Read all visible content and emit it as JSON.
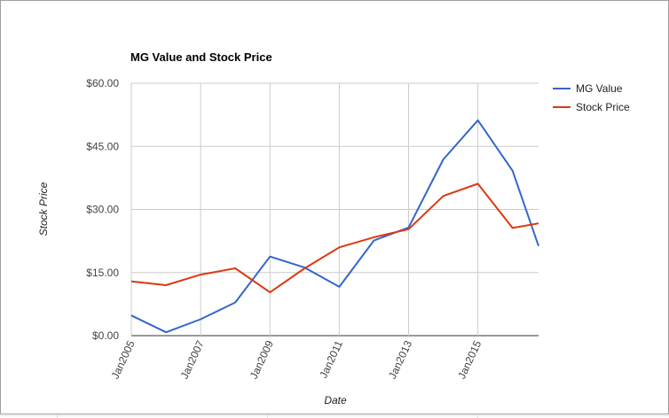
{
  "chart_data": {
    "type": "line",
    "title": "MG Value and Stock Price",
    "xlabel": "Date",
    "ylabel": "Stock Price",
    "x": [
      "2005-01",
      "2006-01",
      "2007-01",
      "2008-01",
      "2009-01",
      "2010-01",
      "2011-01",
      "2012-01",
      "2013-01",
      "2014-01",
      "2015-01",
      "2016-01",
      "2016-10"
    ],
    "x_tick_labels": [
      "Jan2005",
      "Jan2007",
      "Jan2009",
      "Jan2011",
      "Jan2013",
      "Jan2015"
    ],
    "y_tick_labels": [
      "$0.00",
      "$15.00",
      "$30.00",
      "$45.00",
      "$60.00"
    ],
    "ylim": [
      0,
      60
    ],
    "grid": true,
    "legend_position": "right",
    "series": [
      {
        "name": "MG Value",
        "color": "#3366cc",
        "values": [
          4.8,
          0.8,
          3.9,
          7.9,
          18.8,
          16.2,
          11.6,
          22.6,
          25.7,
          41.9,
          51.2,
          39.2,
          21.3
        ]
      },
      {
        "name": "Stock Price",
        "color": "#dc3912",
        "values": [
          12.9,
          12.0,
          14.5,
          16.0,
          10.3,
          16.0,
          21.0,
          23.4,
          25.3,
          33.2,
          36.1,
          25.6,
          26.7
        ]
      }
    ]
  }
}
